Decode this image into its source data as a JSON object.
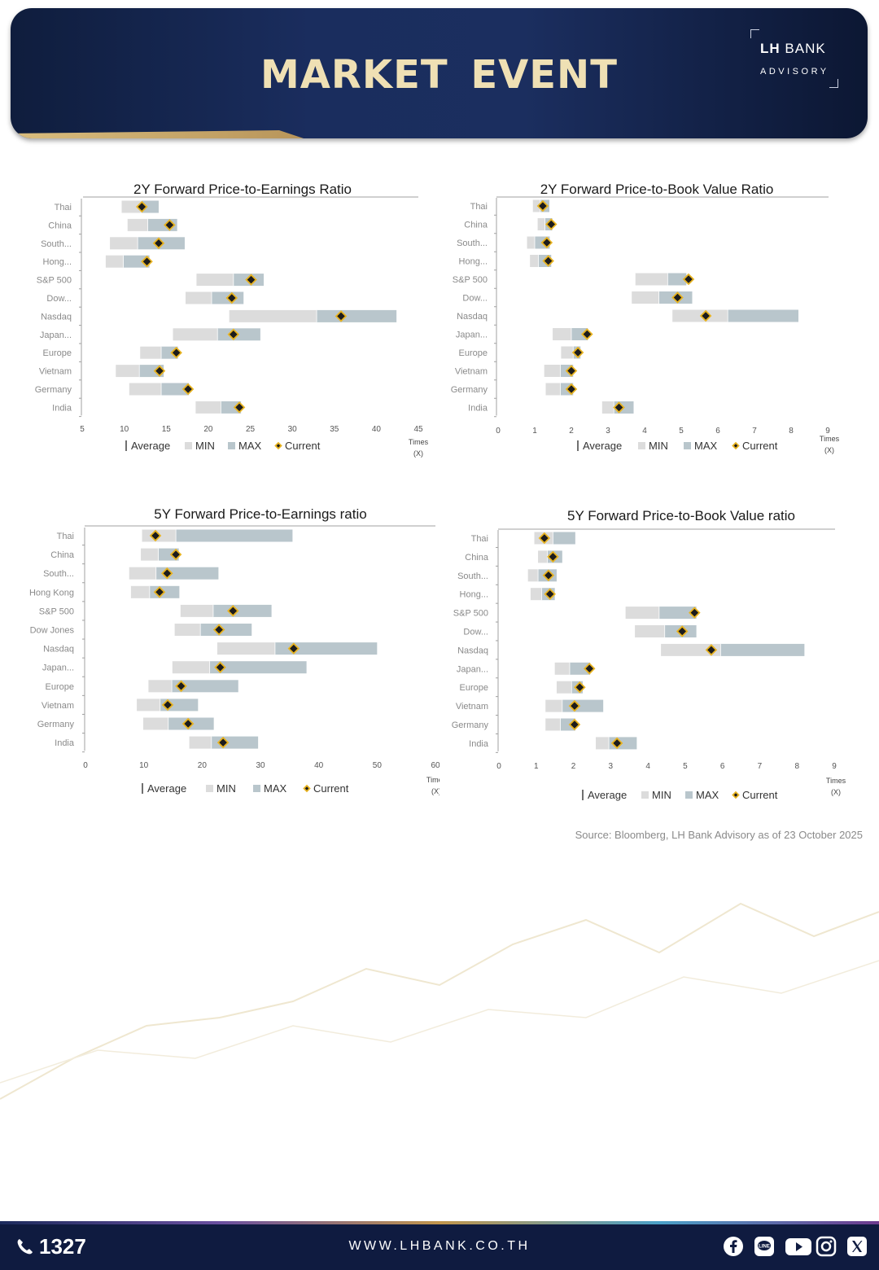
{
  "header": {
    "title": "MARKET EVENT",
    "logo_main_bold": "LH",
    "logo_main": "BANK",
    "logo_sub": "ADVISORY"
  },
  "legend": {
    "average": "Average",
    "min": "MIN",
    "max": "MAX",
    "current": "Current"
  },
  "axis_unit": {
    "line1": "Times",
    "line2": "(X)"
  },
  "colors": {
    "min": "#dcdcdc",
    "max": "#b9c6cc",
    "current_fill": "#1c1c1c",
    "current_border": "#e8b320",
    "axis": "#a0a0a0"
  },
  "source": "Source: Bloomberg,  LH Bank Advisory  as of 23 October 2025",
  "footer": {
    "phone": "1327",
    "website": "WWW.LHBANK.CO.TH",
    "social_icons": [
      "facebook-icon",
      "line-icon",
      "youtube-icon",
      "instagram-icon",
      "x-icon"
    ]
  },
  "chart_data": [
    {
      "type": "bar",
      "title": "2Y Forward Price-to-Earnings Ratio",
      "categories": [
        "Thai",
        "China",
        "South...",
        "Hong...",
        "S&P 500",
        "Dow...",
        "Nasdaq",
        "Japan...",
        "Europe",
        "Vietnam",
        "Germany",
        "India"
      ],
      "xlim": [
        5,
        45
      ],
      "ticks": [
        5,
        10,
        15,
        20,
        25,
        30,
        35,
        40,
        45
      ],
      "series": [
        {
          "name": "MIN",
          "values": [
            9.7,
            10.4,
            8.3,
            7.8,
            18.6,
            17.3,
            22.5,
            15.8,
            11.9,
            9.0,
            10.6,
            18.5
          ]
        },
        {
          "name": "Average",
          "values": [
            12.0,
            12.8,
            11.6,
            9.9,
            23.0,
            20.4,
            32.9,
            21.1,
            14.4,
            11.8,
            14.4,
            21.5
          ]
        },
        {
          "name": "MAX",
          "values": [
            14.1,
            16.3,
            17.2,
            13.0,
            26.6,
            24.2,
            42.4,
            26.2,
            16.4,
            14.7,
            17.7,
            23.9
          ]
        },
        {
          "name": "Current",
          "values": [
            12.1,
            15.4,
            14.1,
            12.7,
            25.1,
            22.8,
            35.8,
            23.0,
            16.2,
            14.2,
            17.6,
            23.7
          ]
        }
      ],
      "tick_format": "int",
      "legend_position": "bottom"
    },
    {
      "type": "bar",
      "title": "2Y Forward Price-to-Book Value Ratio",
      "categories": [
        "Thai",
        "China",
        "South...",
        "Hong...",
        "S&P 500",
        "Dow...",
        "Nasdaq",
        "Japan...",
        "Europe",
        "Vietnam",
        "Germany",
        "India"
      ],
      "xlim": [
        0,
        9
      ],
      "ticks": [
        0,
        1,
        2,
        3,
        4,
        5,
        6,
        7,
        8,
        9
      ],
      "series": [
        {
          "name": "MIN",
          "values": [
            0.95,
            1.08,
            0.79,
            0.87,
            3.75,
            3.65,
            4.76,
            1.49,
            1.72,
            1.26,
            1.3,
            2.84
          ]
        },
        {
          "name": "Average",
          "values": [
            1.15,
            1.28,
            1.0,
            1.1,
            4.63,
            4.39,
            6.27,
            2.0,
            2.05,
            1.7,
            1.7,
            3.16
          ]
        },
        {
          "name": "MAX",
          "values": [
            1.4,
            1.48,
            1.41,
            1.45,
            5.14,
            5.3,
            8.2,
            2.45,
            2.25,
            2.05,
            2.05,
            3.7
          ]
        },
        {
          "name": "Current",
          "values": [
            1.22,
            1.45,
            1.33,
            1.37,
            5.2,
            4.9,
            5.67,
            2.43,
            2.18,
            2.0,
            2.0,
            3.3
          ]
        }
      ],
      "tick_format": "int",
      "legend_position": "bottom"
    },
    {
      "type": "bar",
      "title": "5Y Forward Price-to-Earnings ratio",
      "categories": [
        "Thai",
        "China",
        "South...",
        "Hong Kong",
        "S&P 500",
        "Dow Jones",
        "Nasdaq",
        "Japan...",
        "Europe",
        "Vietnam",
        "Germany",
        "India"
      ],
      "xlim": [
        0,
        60
      ],
      "ticks": [
        0,
        10,
        20,
        30,
        40,
        50,
        60
      ],
      "series": [
        {
          "name": "MIN",
          "values": [
            9.7,
            9.5,
            7.5,
            7.8,
            16.3,
            15.3,
            22.6,
            14.9,
            10.8,
            8.8,
            9.9,
            17.8
          ]
        },
        {
          "name": "Average",
          "values": [
            15.5,
            12.5,
            12.1,
            11.0,
            21.9,
            19.7,
            32.5,
            21.3,
            14.8,
            12.8,
            14.2,
            21.6
          ]
        },
        {
          "name": "MAX",
          "values": [
            35.5,
            16.0,
            22.8,
            16.1,
            31.9,
            28.5,
            50.0,
            37.9,
            26.2,
            19.3,
            22.0,
            29.6
          ]
        },
        {
          "name": "Current",
          "values": [
            12.0,
            15.5,
            14.0,
            12.7,
            25.3,
            22.9,
            35.7,
            23.1,
            16.4,
            14.1,
            17.6,
            23.6
          ]
        }
      ],
      "tick_format": "int",
      "legend_position": "bottom"
    },
    {
      "type": "bar",
      "title": "5Y Forward Price-to-Book Value ratio",
      "categories": [
        "Thai",
        "China",
        "South...",
        "Hong...",
        "S&P 500",
        "Dow...",
        "Nasdaq",
        "Japan...",
        "Europe",
        "Vietnam",
        "Germany",
        "India"
      ],
      "xlim": [
        0,
        9
      ],
      "ticks": [
        0,
        1,
        2,
        3,
        4,
        5,
        6,
        7,
        8,
        9
      ],
      "series": [
        {
          "name": "MIN",
          "values": [
            0.95,
            1.05,
            0.78,
            0.85,
            3.4,
            3.65,
            4.35,
            1.5,
            1.55,
            1.25,
            1.25,
            2.6
          ]
        },
        {
          "name": "Average",
          "values": [
            1.45,
            1.3,
            1.05,
            1.15,
            4.3,
            4.45,
            5.95,
            1.9,
            1.95,
            1.7,
            1.65,
            2.95
          ]
        },
        {
          "name": "MAX",
          "values": [
            2.05,
            1.7,
            1.55,
            1.5,
            5.3,
            5.3,
            8.2,
            2.45,
            2.25,
            2.8,
            2.05,
            3.7
          ]
        },
        {
          "name": "Current",
          "values": [
            1.22,
            1.45,
            1.33,
            1.37,
            5.25,
            4.92,
            5.7,
            2.43,
            2.17,
            2.03,
            2.03,
            3.17
          ]
        }
      ],
      "tick_format": "int",
      "legend_position": "bottom"
    }
  ]
}
